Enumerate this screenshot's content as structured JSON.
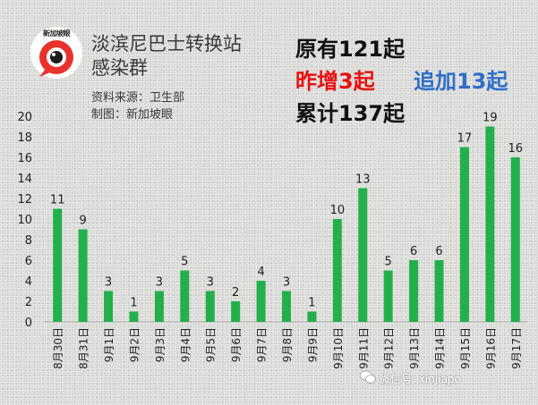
{
  "header": {
    "title_line1": "淡滨尼巴士转换站",
    "title_line2": "感染群",
    "source": "资料来源：卫生部",
    "credit": "制图：新加坡眼",
    "logo_text": "新加坡眼"
  },
  "stats": {
    "original": "原有121起",
    "yesterday_new": "昨增3起",
    "added": "追加13起",
    "total": "累计137起"
  },
  "colors": {
    "bar": "#22b04a",
    "stat_red": "#e81010",
    "stat_blue": "#2f6fc8",
    "logo_red": "#e8322b"
  },
  "watermark": {
    "text": "微信号: xinjiapo",
    "icon": "wechat-icon"
  },
  "chart_data": {
    "type": "bar",
    "categories": [
      "8月30日",
      "8月31日",
      "9月1日",
      "9月2日",
      "9月3日",
      "9月4日",
      "9月5日",
      "9月6日",
      "9月7日",
      "9月8日",
      "9月9日",
      "9月10日",
      "9月11日",
      "9月12日",
      "9月13日",
      "9月14日",
      "9月15日",
      "9月16日",
      "9月17日"
    ],
    "values": [
      11,
      9,
      3,
      1,
      3,
      5,
      3,
      2,
      4,
      3,
      1,
      10,
      13,
      5,
      6,
      6,
      17,
      19,
      16
    ],
    "yticks": [
      0,
      2,
      4,
      6,
      8,
      10,
      12,
      14,
      16,
      18,
      20
    ],
    "ylim": [
      0,
      20
    ],
    "grid": false,
    "data_labels": true
  }
}
